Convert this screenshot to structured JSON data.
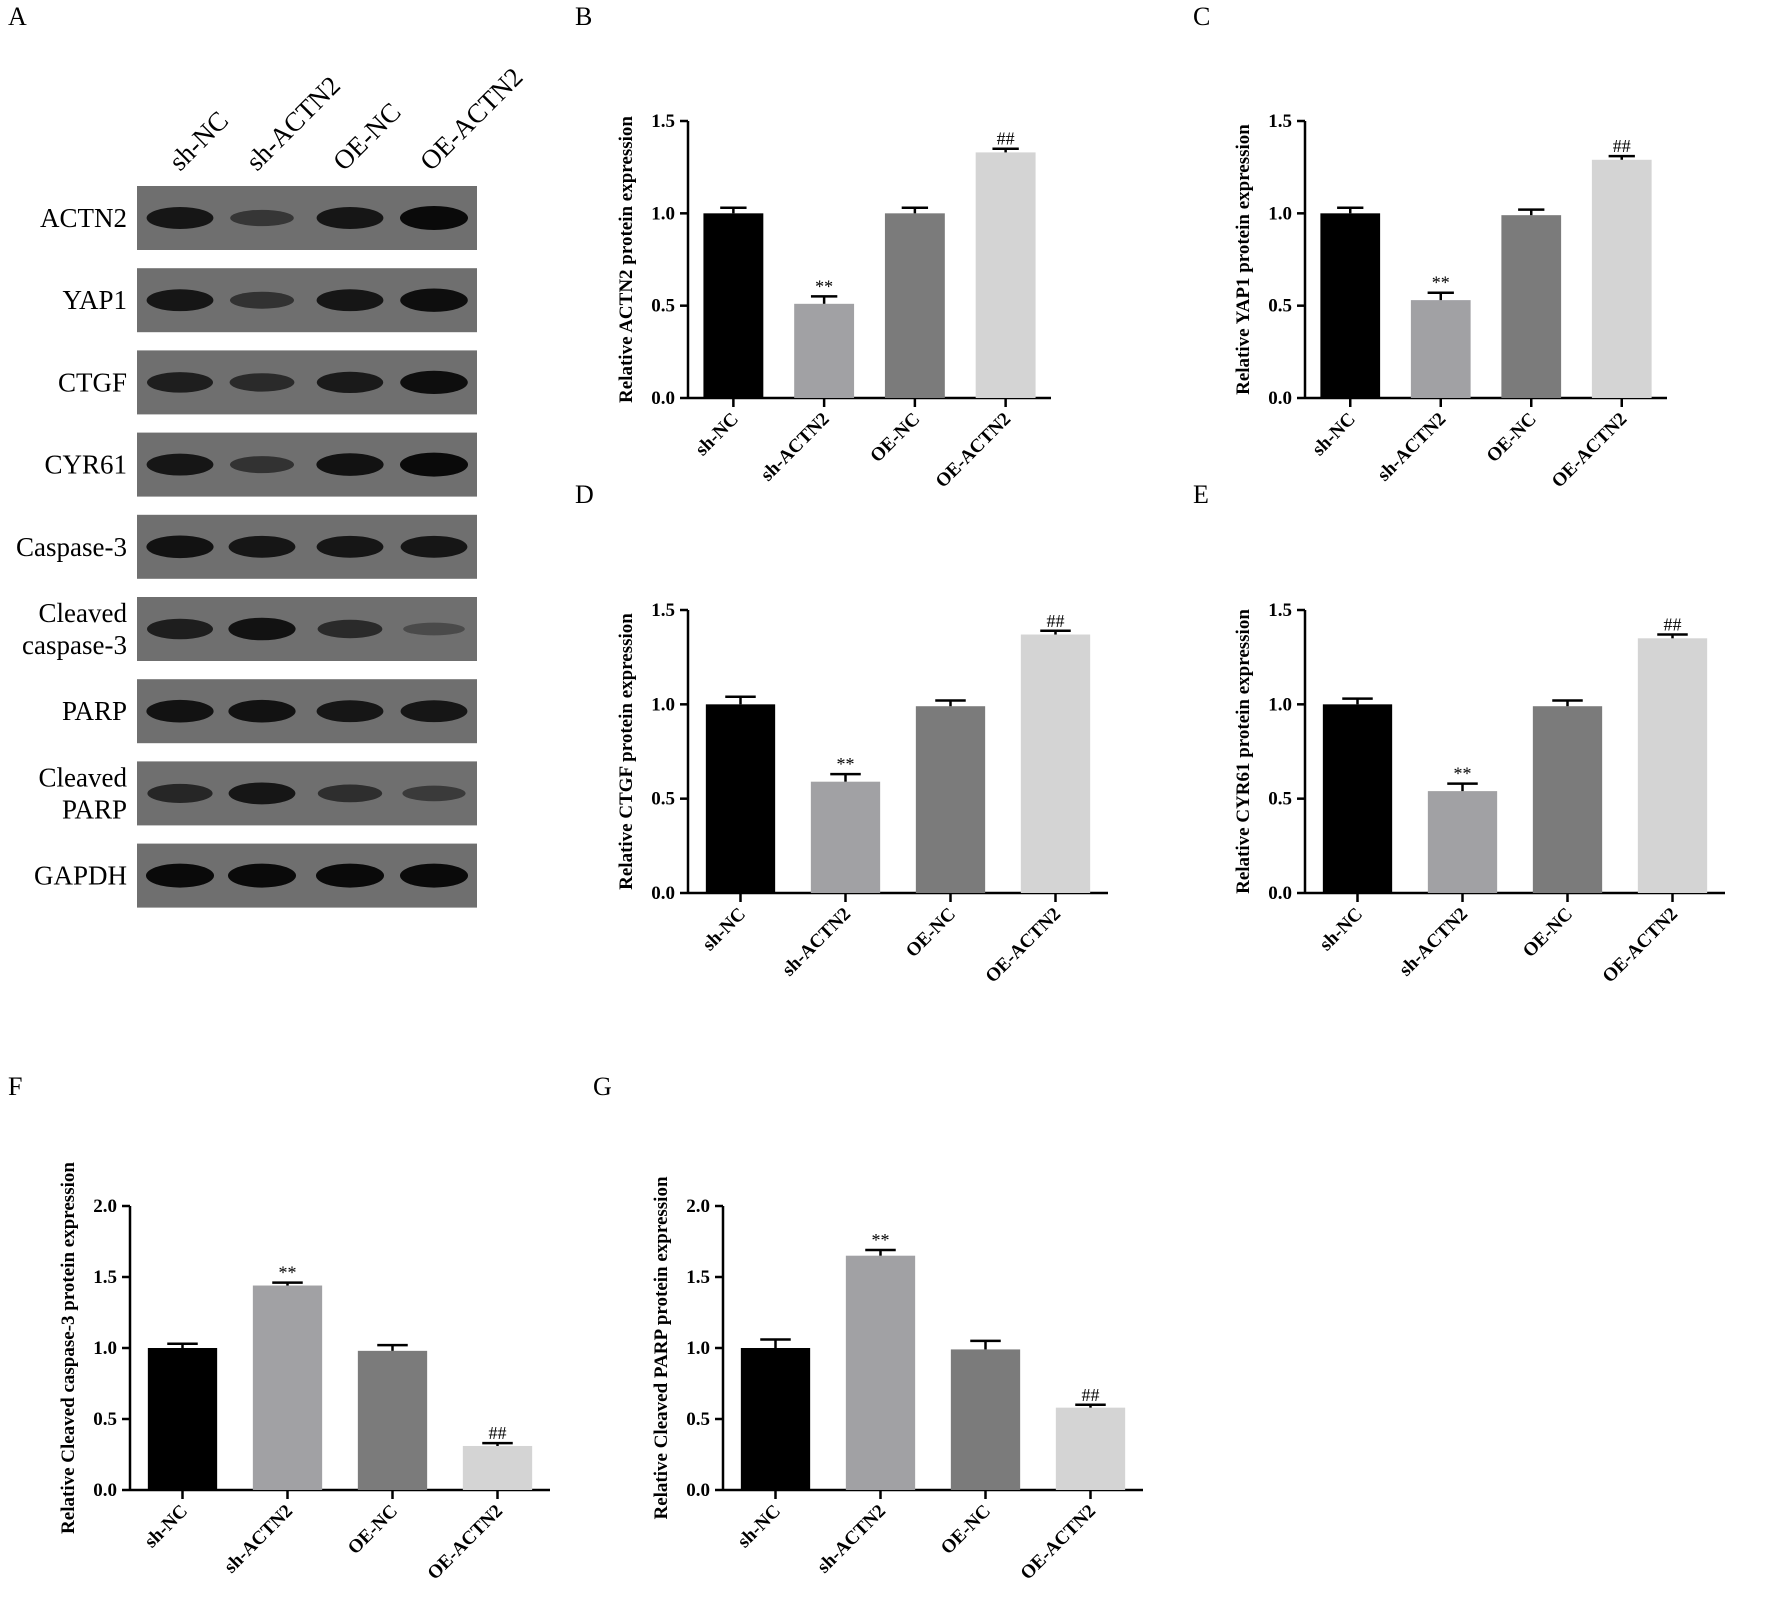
{
  "panels": {
    "A": "A",
    "B": "B",
    "C": "C",
    "D": "D",
    "E": "E",
    "F": "F",
    "G": "G"
  },
  "blot": {
    "lanes": [
      "sh-NC",
      "sh-ACTN2",
      "OE-NC",
      "OE-ACTN2"
    ],
    "rows": [
      {
        "label_lines": [
          "ACTN2"
        ],
        "intensity": [
          0.85,
          0.45,
          0.85,
          1.0
        ]
      },
      {
        "label_lines": [
          "YAP1"
        ],
        "intensity": [
          0.85,
          0.5,
          0.85,
          0.95
        ]
      },
      {
        "label_lines": [
          "CTGF"
        ],
        "intensity": [
          0.75,
          0.6,
          0.8,
          0.95
        ]
      },
      {
        "label_lines": [
          "CYR61"
        ],
        "intensity": [
          0.85,
          0.5,
          0.9,
          1.0
        ]
      },
      {
        "label_lines": [
          "Caspase-3"
        ],
        "intensity": [
          0.9,
          0.85,
          0.85,
          0.85
        ]
      },
      {
        "label_lines": [
          "Cleaved",
          "caspase-3"
        ],
        "intensity": [
          0.75,
          0.9,
          0.6,
          0.2
        ]
      },
      {
        "label_lines": [
          "PARP"
        ],
        "intensity": [
          0.9,
          0.9,
          0.85,
          0.85
        ]
      },
      {
        "label_lines": [
          "Cleaved",
          "PARP"
        ],
        "intensity": [
          0.65,
          0.85,
          0.55,
          0.4
        ]
      },
      {
        "label_lines": [
          "GAPDH"
        ],
        "intensity": [
          1.0,
          1.0,
          1.0,
          1.0
        ]
      }
    ]
  },
  "chart_data": [
    {
      "panel": "B",
      "type": "bar",
      "categories": [
        "sh-NC",
        "sh-ACTN2",
        "OE-NC",
        "OE-ACTN2"
      ],
      "values": [
        1.0,
        0.51,
        1.0,
        1.33
      ],
      "errors": [
        0.03,
        0.04,
        0.03,
        0.02
      ],
      "annotations": [
        "",
        "**",
        "",
        "##"
      ],
      "colors": [
        "#000000",
        "#a1a1a4",
        "#7b7b7b",
        "#d4d4d4"
      ],
      "ylabel": "Relative ACTN2 protein expression",
      "ylim": [
        0,
        1.5
      ],
      "yticks": [
        "0.0",
        "0.5",
        "1.0",
        "1.5"
      ]
    },
    {
      "panel": "C",
      "type": "bar",
      "categories": [
        "sh-NC",
        "sh-ACTN2",
        "OE-NC",
        "OE-ACTN2"
      ],
      "values": [
        1.0,
        0.53,
        0.99,
        1.29
      ],
      "errors": [
        0.03,
        0.04,
        0.03,
        0.02
      ],
      "annotations": [
        "",
        "**",
        "",
        "##"
      ],
      "colors": [
        "#000000",
        "#a1a1a4",
        "#7b7b7b",
        "#d4d4d4"
      ],
      "ylabel": "Relative YAP1 protein expression",
      "ylim": [
        0,
        1.5
      ],
      "yticks": [
        "0.0",
        "0.5",
        "1.0",
        "1.5"
      ]
    },
    {
      "panel": "D",
      "type": "bar",
      "categories": [
        "sh-NC",
        "sh-ACTN2",
        "OE-NC",
        "OE-ACTN2"
      ],
      "values": [
        1.0,
        0.59,
        0.99,
        1.37
      ],
      "errors": [
        0.04,
        0.04,
        0.03,
        0.02
      ],
      "annotations": [
        "",
        "**",
        "",
        "##"
      ],
      "colors": [
        "#000000",
        "#a1a1a4",
        "#7b7b7b",
        "#d4d4d4"
      ],
      "ylabel": "Relative CTGF protein expression",
      "ylim": [
        0,
        1.5
      ],
      "yticks": [
        "0.0",
        "0.5",
        "1.0",
        "1.5"
      ]
    },
    {
      "panel": "E",
      "type": "bar",
      "categories": [
        "sh-NC",
        "sh-ACTN2",
        "OE-NC",
        "OE-ACTN2"
      ],
      "values": [
        1.0,
        0.54,
        0.99,
        1.35
      ],
      "errors": [
        0.03,
        0.04,
        0.03,
        0.02
      ],
      "annotations": [
        "",
        "**",
        "",
        "##"
      ],
      "colors": [
        "#000000",
        "#a1a1a4",
        "#7b7b7b",
        "#d4d4d4"
      ],
      "ylabel": "Relative CYR61 protein expression",
      "ylim": [
        0,
        1.5
      ],
      "yticks": [
        "0.0",
        "0.5",
        "1.0",
        "1.5"
      ]
    },
    {
      "panel": "F",
      "type": "bar",
      "categories": [
        "sh-NC",
        "sh-ACTN2",
        "OE-NC",
        "OE-ACTN2"
      ],
      "values": [
        1.0,
        1.44,
        0.98,
        0.31
      ],
      "errors": [
        0.03,
        0.02,
        0.04,
        0.02
      ],
      "annotations": [
        "",
        "**",
        "",
        "##"
      ],
      "colors": [
        "#000000",
        "#a1a1a4",
        "#7b7b7b",
        "#d4d4d4"
      ],
      "ylabel": "Relative Cleaved caspase-3 protein expression",
      "ylim": [
        0,
        2.0
      ],
      "yticks": [
        "0.0",
        "0.5",
        "1.0",
        "1.5",
        "2.0"
      ]
    },
    {
      "panel": "G",
      "type": "bar",
      "categories": [
        "sh-NC",
        "sh-ACTN2",
        "OE-NC",
        "OE-ACTN2"
      ],
      "values": [
        1.0,
        1.65,
        0.99,
        0.58
      ],
      "errors": [
        0.06,
        0.04,
        0.06,
        0.02
      ],
      "annotations": [
        "",
        "**",
        "",
        "##"
      ],
      "colors": [
        "#000000",
        "#a1a1a4",
        "#7b7b7b",
        "#d4d4d4"
      ],
      "ylabel": "Relative Cleaved PARP protein expression",
      "ylim": [
        0,
        2.0
      ],
      "yticks": [
        "0.0",
        "0.5",
        "1.0",
        "1.5",
        "2.0"
      ]
    }
  ]
}
